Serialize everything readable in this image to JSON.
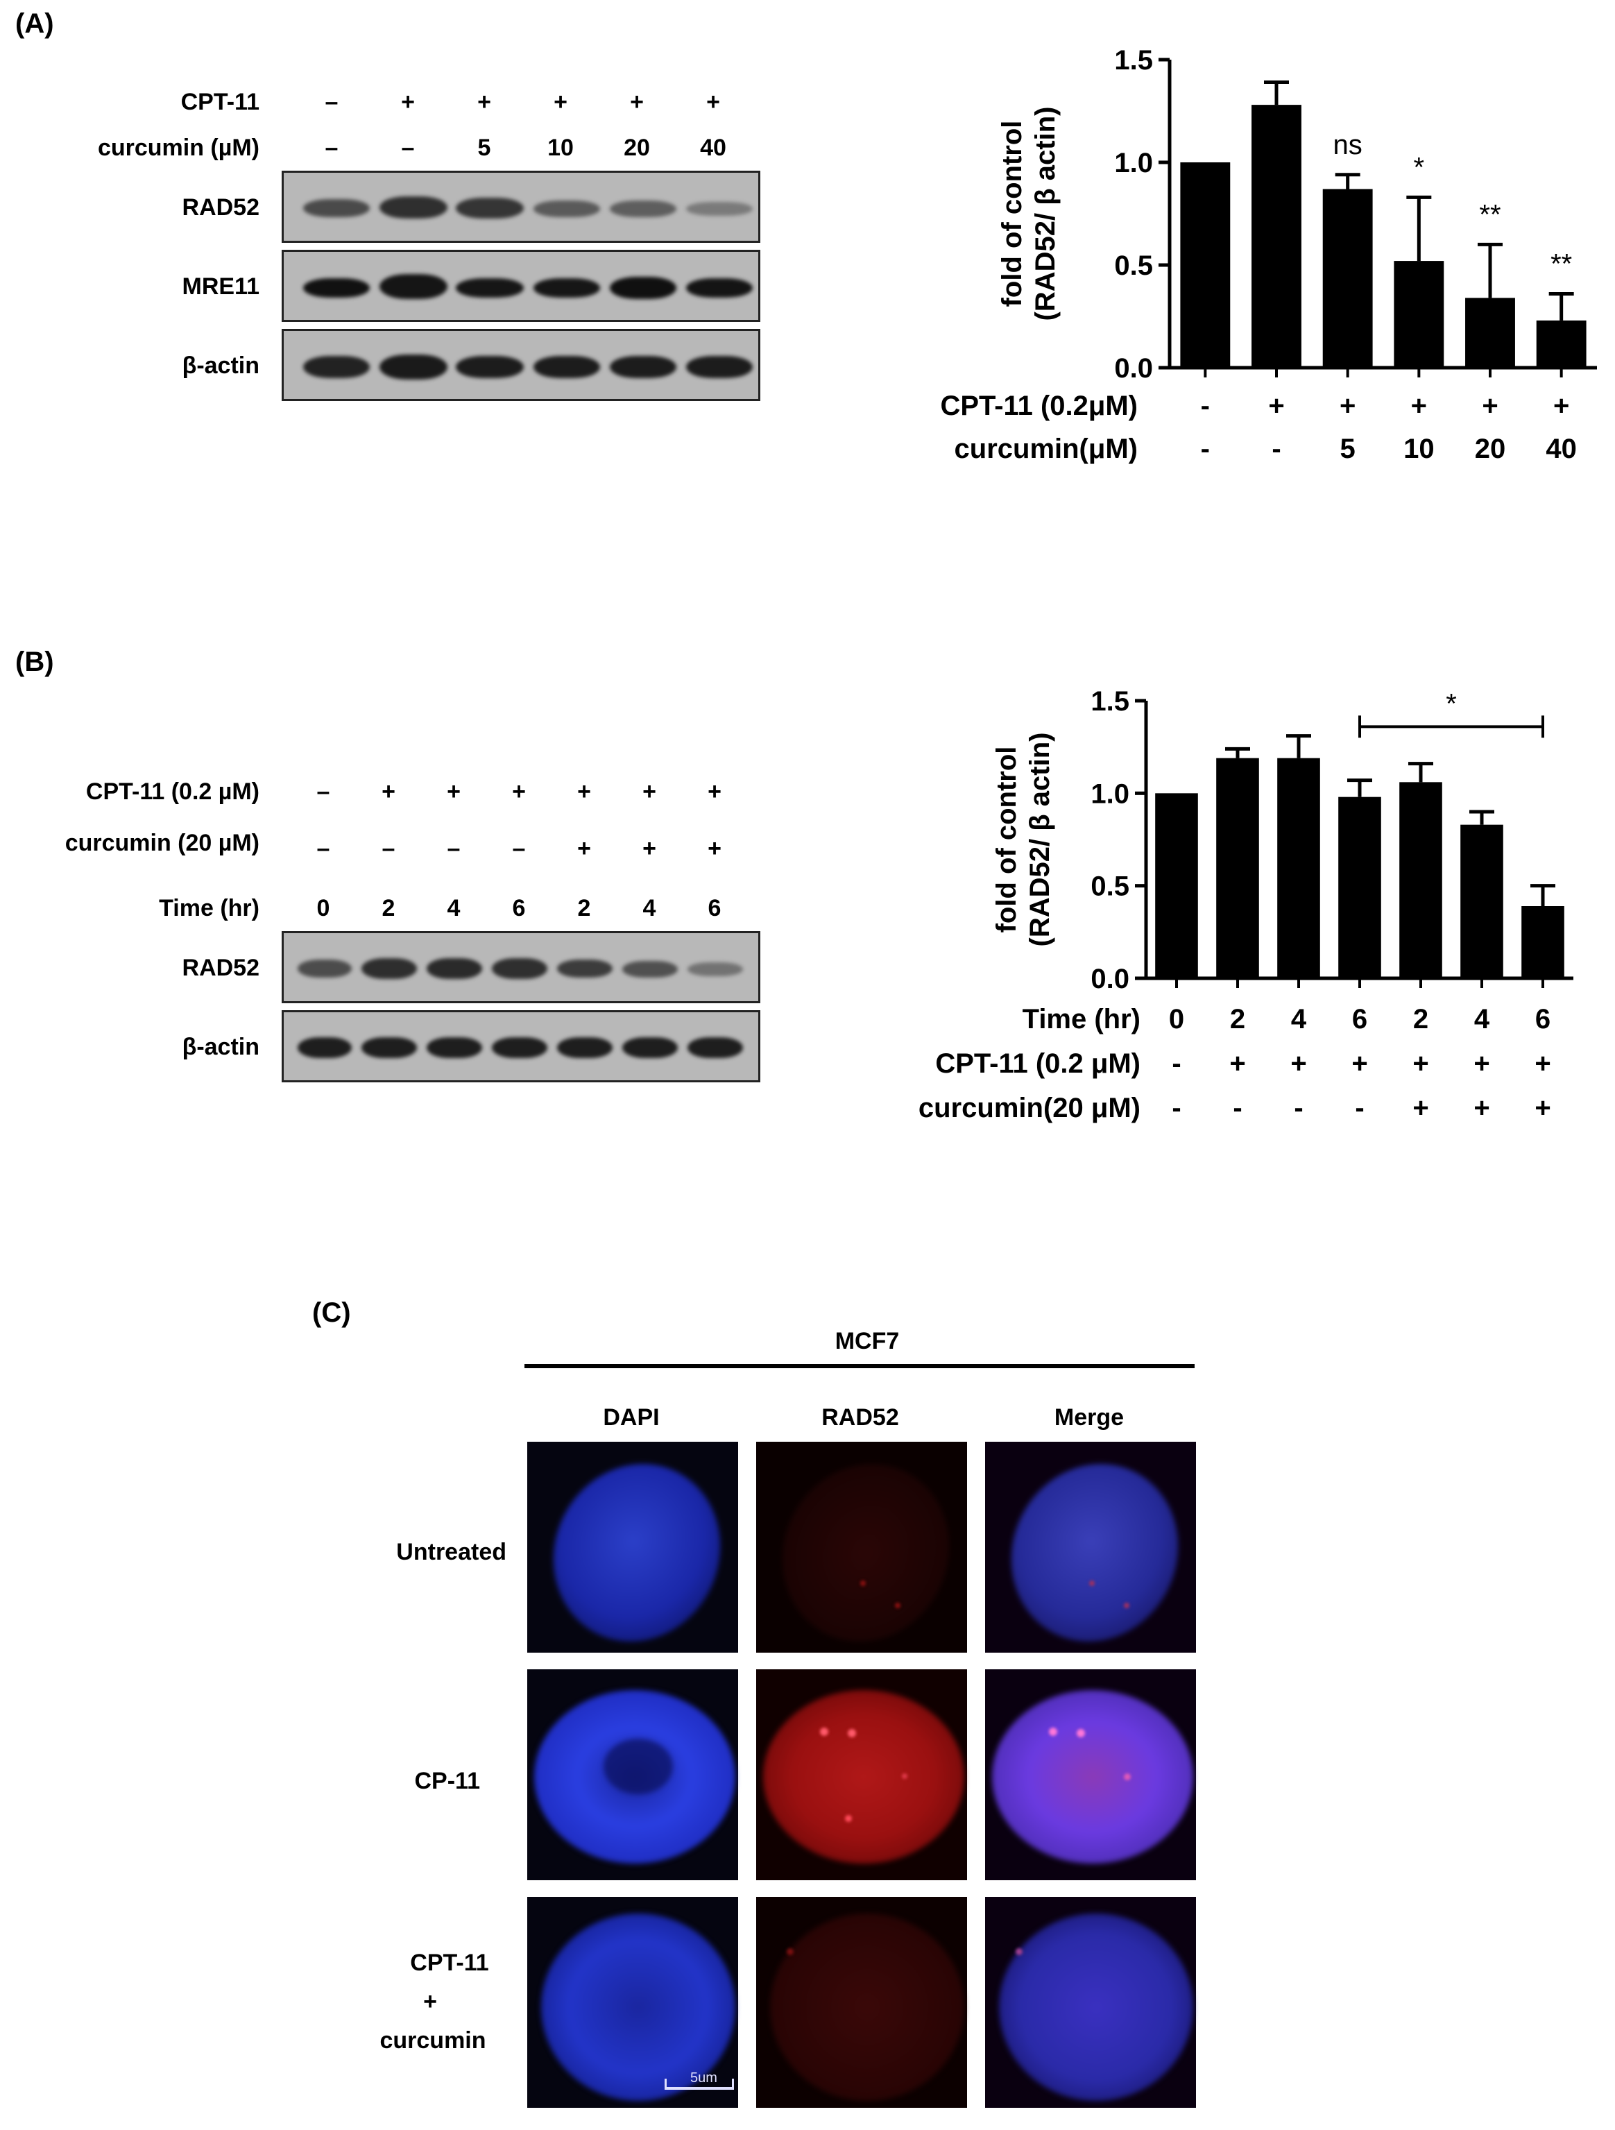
{
  "panel_a": {
    "label": "(A)",
    "blot": {
      "row_labels": [
        "CPT-11",
        "curcumin (µM)"
      ],
      "cpt11": [
        "–",
        "+",
        "+",
        "+",
        "+",
        "+"
      ],
      "curcumin": [
        "–",
        "–",
        "5",
        "10",
        "20",
        "40"
      ],
      "bands": [
        "RAD52",
        "MRE11",
        "β-actin"
      ]
    }
  },
  "panel_b": {
    "label": "(B)",
    "blot": {
      "row_labels": [
        "CPT-11 (0.2 µM)",
        "curcumin (20 µM)",
        "Time (hr)"
      ],
      "cpt11": [
        "–",
        "+",
        "+",
        "+",
        "+",
        "+",
        "+"
      ],
      "curcumin": [
        "–",
        "–",
        "–",
        "–",
        "+",
        "+",
        "+"
      ],
      "time": [
        "0",
        "2",
        "4",
        "6",
        "2",
        "4",
        "6"
      ],
      "bands": [
        "RAD52",
        "β-actin"
      ]
    }
  },
  "panel_c": {
    "label": "(C)",
    "cell_line": "MCF7",
    "columns": [
      "DAPI",
      "RAD52",
      "Merge"
    ],
    "rows": [
      "Untreated",
      "CP-11",
      "CPT-11",
      "+",
      "curcumin"
    ],
    "scale_bar": "5um"
  },
  "chart_data": [
    {
      "type": "bar",
      "ylabel_line1": "fold of control",
      "ylabel_line2": "(RAD52/ β actin)",
      "ylim": [
        0,
        1.5
      ],
      "yticks": [
        "0.0",
        "0.5",
        "1.0",
        "1.5"
      ],
      "row_labels": [
        "CPT-11 (0.2μM)",
        "curcumin(μM)"
      ],
      "cpt11": [
        "-",
        "+",
        "+",
        "+",
        "+",
        "+"
      ],
      "curcumin": [
        "-",
        "-",
        "5",
        "10",
        "20",
        "40"
      ],
      "values": [
        1.0,
        1.28,
        0.87,
        0.52,
        0.34,
        0.23
      ],
      "errors": [
        0.0,
        0.11,
        0.07,
        0.31,
        0.26,
        0.13
      ],
      "annotations": [
        "",
        "",
        "ns",
        "*",
        "**",
        "**"
      ],
      "grid": false
    },
    {
      "type": "bar",
      "ylabel_line1": "fold of control",
      "ylabel_line2": "(RAD52/ β actin)",
      "ylim": [
        0,
        1.5
      ],
      "yticks": [
        "0.0",
        "0.5",
        "1.0",
        "1.5"
      ],
      "row_labels": [
        "Time (hr)",
        "CPT-11 (0.2 μM)",
        "curcumin(20 μM)"
      ],
      "time": [
        "0",
        "2",
        "4",
        "6",
        "2",
        "4",
        "6"
      ],
      "cpt11": [
        "-",
        "+",
        "+",
        "+",
        "+",
        "+",
        "+"
      ],
      "curcumin": [
        "-",
        "-",
        "-",
        "-",
        "+",
        "+",
        "+"
      ],
      "values": [
        1.0,
        1.19,
        1.19,
        0.98,
        1.06,
        0.83,
        0.39
      ],
      "errors": [
        0.0,
        0.05,
        0.12,
        0.09,
        0.1,
        0.07,
        0.11
      ],
      "bracket": {
        "from": 3,
        "to": 6,
        "label": "*"
      },
      "grid": false
    }
  ]
}
